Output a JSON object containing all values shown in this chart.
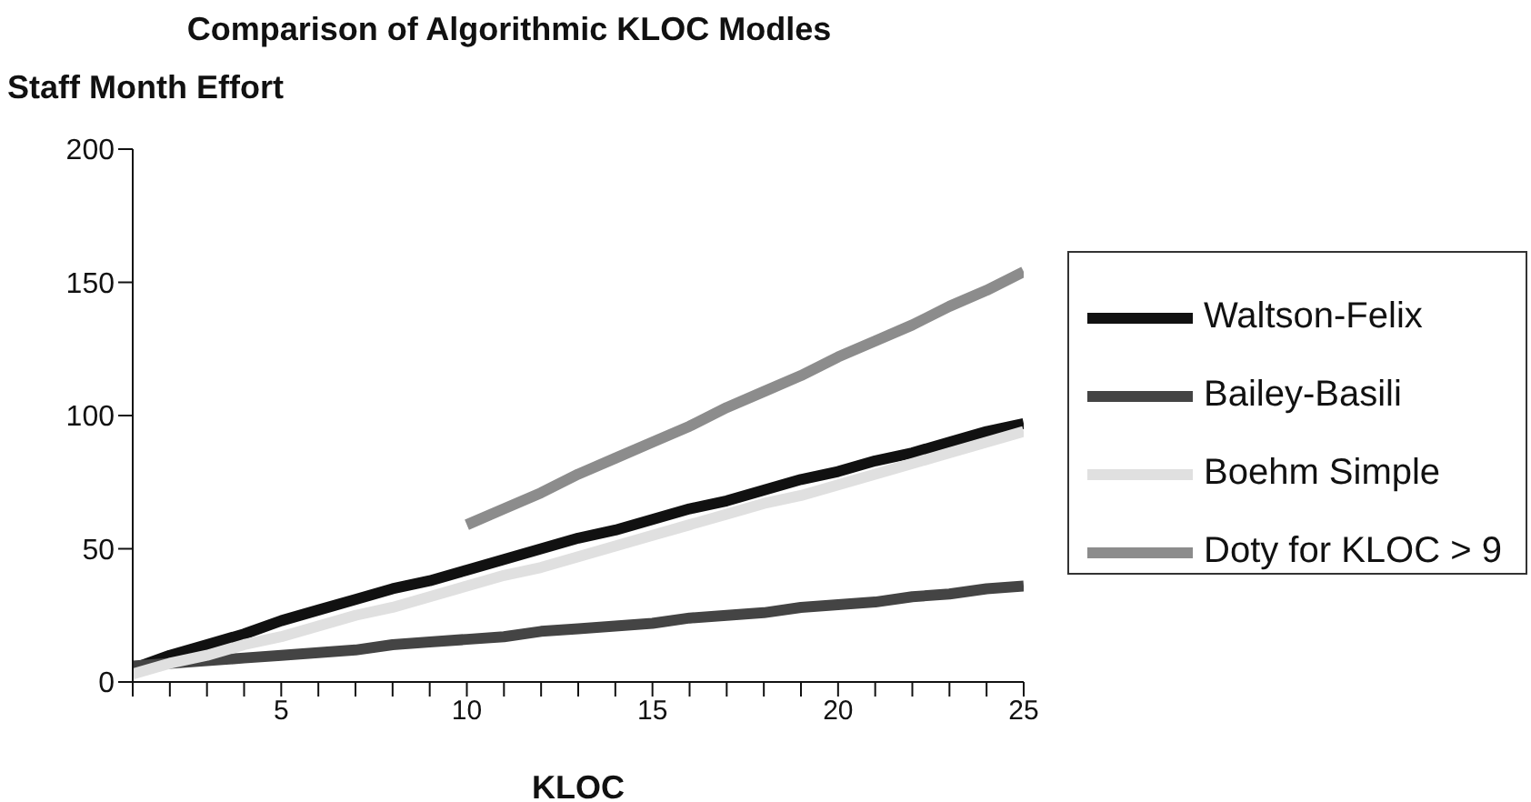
{
  "chart_data": {
    "type": "line",
    "title": "Comparison of Algorithmic KLOC Modles",
    "ylabel": "Staff Month Effort",
    "xlabel": "KLOC",
    "x": [
      1,
      2,
      3,
      4,
      5,
      6,
      7,
      8,
      9,
      10,
      11,
      12,
      13,
      14,
      15,
      16,
      17,
      18,
      19,
      20,
      21,
      22,
      23,
      24,
      25
    ],
    "series": [
      {
        "name": "Waltson-Felix",
        "color": "#111111",
        "values": [
          5,
          10,
          14,
          18,
          23,
          27,
          31,
          35,
          38,
          42,
          46,
          50,
          54,
          57,
          61,
          65,
          68,
          72,
          76,
          79,
          83,
          86,
          90,
          94,
          97
        ]
      },
      {
        "name": "Bailey-Basili",
        "color": "#444444",
        "values": [
          6,
          7,
          8,
          9,
          10,
          11,
          12,
          14,
          15,
          16,
          17,
          19,
          20,
          21,
          22,
          24,
          25,
          26,
          28,
          29,
          30,
          32,
          33,
          35,
          36
        ]
      },
      {
        "name": "Boehm Simple",
        "color": "#e0e0e0",
        "values": [
          3,
          7,
          10,
          14,
          17,
          21,
          25,
          28,
          32,
          36,
          40,
          43,
          47,
          51,
          55,
          59,
          63,
          67,
          70,
          74,
          78,
          82,
          86,
          90,
          94
        ]
      },
      {
        "name": "Doty for KLOC > 9",
        "color": "#8c8c8c",
        "values": [
          null,
          null,
          null,
          null,
          null,
          null,
          null,
          null,
          null,
          59,
          65,
          71,
          78,
          84,
          90,
          96,
          103,
          109,
          115,
          122,
          128,
          134,
          141,
          147,
          154
        ]
      }
    ],
    "xlim": [
      1,
      25
    ],
    "xticks": [
      {
        "value": 1,
        "label": null
      },
      {
        "value": 2,
        "label": null
      },
      {
        "value": 3,
        "label": null
      },
      {
        "value": 4,
        "label": null
      },
      5,
      {
        "value": 6,
        "label": null
      },
      {
        "value": 7,
        "label": null
      },
      {
        "value": 8,
        "label": null
      },
      {
        "value": 9,
        "label": null
      },
      10,
      {
        "value": 11,
        "label": null
      },
      {
        "value": 12,
        "label": null
      },
      {
        "value": 13,
        "label": null
      },
      {
        "value": 14,
        "label": null
      },
      15,
      {
        "value": 16,
        "label": null
      },
      {
        "value": 17,
        "label": null
      },
      {
        "value": 18,
        "label": null
      },
      {
        "value": 19,
        "label": null
      },
      20,
      {
        "value": 21,
        "label": null
      },
      {
        "value": 22,
        "label": null
      },
      {
        "value": 23,
        "label": null
      },
      {
        "value": 24,
        "label": null
      },
      25
    ],
    "ylim": [
      0,
      200
    ],
    "yticks": [
      0,
      50,
      100,
      150,
      200
    ],
    "grid": false,
    "legend": "right",
    "marker": "none",
    "line_style": "solid"
  }
}
